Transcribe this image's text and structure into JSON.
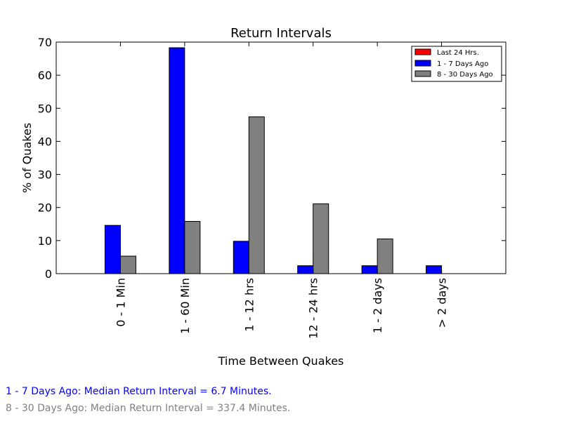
{
  "chart_data": {
    "type": "bar",
    "title": "Return Intervals",
    "xlabel": "Time Between Quakes",
    "ylabel": "% of Quakes",
    "ylim": [
      0,
      70
    ],
    "yticks": [
      0,
      10,
      20,
      30,
      40,
      50,
      60,
      70
    ],
    "grid": false,
    "legend_position": "top-right",
    "categories": [
      "0 - 1 Min",
      "1 - 60 Min",
      "1 - 12 hrs",
      "12 - 24 hrs",
      "1 - 2 days",
      "> 2 days"
    ],
    "series": [
      {
        "name": "Last 24 Hrs.",
        "color": "#ff0000",
        "values": [
          0,
          0,
          0,
          0,
          0,
          0
        ]
      },
      {
        "name": "1 - 7 Days Ago",
        "color": "#0000ff",
        "values": [
          14.6,
          68.3,
          9.8,
          2.4,
          2.4,
          2.4
        ]
      },
      {
        "name": "8 - 30 Days Ago",
        "color": "#808080",
        "values": [
          5.3,
          15.8,
          47.4,
          21.1,
          10.5,
          0
        ]
      }
    ]
  },
  "notes": {
    "line1": {
      "text": "1 - 7 Days Ago: Median Return Interval = 6.7 Minutes.",
      "color": "#0000ff"
    },
    "line2": {
      "text": "8 - 30 Days Ago: Median Return Interval = 337.4 Minutes.",
      "color": "#808080"
    }
  }
}
